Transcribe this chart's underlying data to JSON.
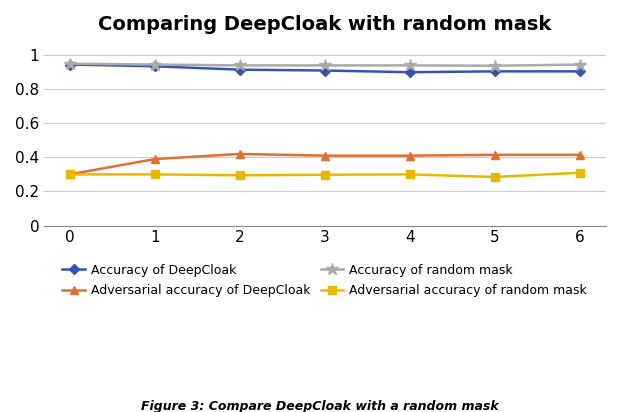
{
  "title": "Comparing DeepCloak with random mask",
  "caption": "Figure 3: Compare DeepCloak with a random mask",
  "x": [
    0,
    1,
    2,
    3,
    4,
    5,
    6
  ],
  "deepcloak_accuracy": [
    0.945,
    0.935,
    0.915,
    0.91,
    0.9,
    0.905,
    0.905
  ],
  "deepcloak_adv_accuracy": [
    0.3,
    0.39,
    0.42,
    0.41,
    0.41,
    0.415,
    0.415
  ],
  "random_mask_accuracy": [
    0.95,
    0.945,
    0.94,
    0.94,
    0.94,
    0.938,
    0.945
  ],
  "random_mask_adv_accuracy": [
    0.3,
    0.3,
    0.295,
    0.298,
    0.3,
    0.285,
    0.31
  ],
  "deepcloak_color": "#3454B4",
  "deepcloak_adv_color": "#E07030",
  "random_mask_color": "#AAAAAA",
  "random_mask_adv_color": "#E8B800",
  "ylim": [
    0,
    1.05
  ],
  "yticks": [
    0,
    0.2,
    0.4,
    0.6,
    0.8,
    1
  ],
  "xticks": [
    0,
    1,
    2,
    3,
    4,
    5,
    6
  ],
  "title_fontsize": 14,
  "caption_fontsize": 9,
  "legend_fontsize": 9,
  "background_color": "#FFFFFF"
}
